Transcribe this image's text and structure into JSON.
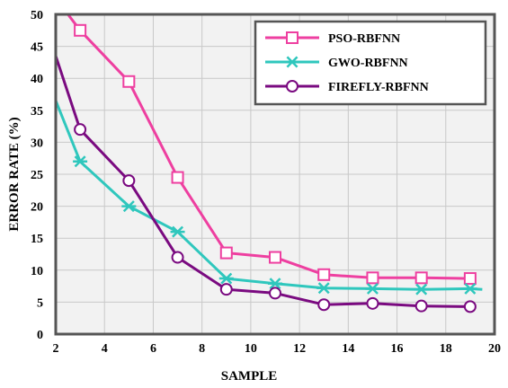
{
  "chart_data": {
    "type": "line",
    "xlabel": "SAMPLE",
    "ylabel": "ERROR RATE (%)",
    "xlim": [
      2,
      20
    ],
    "ylim": [
      0,
      50
    ],
    "xticks": [
      "2",
      "4",
      "6",
      "8",
      "10",
      "12",
      "14",
      "16",
      "18",
      "20"
    ],
    "yticks": [
      "0",
      "5",
      "10",
      "15",
      "20",
      "25",
      "30",
      "35",
      "40",
      "45",
      "50"
    ],
    "grid": true,
    "legend_position": "top-right",
    "series": [
      {
        "name": "PSO-RBFNN",
        "color": "#ee3fa0",
        "marker": "square",
        "line_x": [
          2.5,
          3,
          5,
          7,
          9,
          11,
          13,
          15,
          17,
          19
        ],
        "line_y": [
          50,
          47.5,
          39.5,
          24.5,
          12.7,
          12,
          9.3,
          8.8,
          8.8,
          8.7
        ],
        "points_x": [
          3,
          5,
          7,
          9,
          11,
          13,
          15,
          17,
          19
        ],
        "points_y": [
          47.5,
          39.5,
          24.5,
          12.7,
          12,
          9.3,
          8.8,
          8.8,
          8.7
        ]
      },
      {
        "name": "GWO-RBFNN",
        "color": "#2fc7bd",
        "marker": "star",
        "line_x": [
          2,
          3,
          5,
          7,
          9,
          11,
          13,
          15,
          17,
          19,
          19.5
        ],
        "line_y": [
          36.5,
          27,
          20,
          16,
          8.7,
          7.9,
          7.2,
          7.1,
          7.0,
          7.1,
          7.0
        ],
        "points_x": [
          3,
          5,
          7,
          9,
          11,
          13,
          15,
          17,
          19
        ],
        "points_y": [
          27,
          20,
          16,
          8.7,
          7.9,
          7.2,
          7.1,
          7.0,
          7.1
        ]
      },
      {
        "name": "FIREFLY-RBFNN",
        "color": "#7a0a80",
        "marker": "circle",
        "line_x": [
          2,
          3,
          5,
          7,
          9,
          11,
          13,
          15,
          17,
          19
        ],
        "line_y": [
          43.5,
          32,
          24,
          12,
          7,
          6.4,
          4.6,
          4.8,
          4.4,
          4.3
        ],
        "points_x": [
          3,
          5,
          7,
          9,
          11,
          13,
          15,
          17,
          19
        ],
        "points_y": [
          32,
          24,
          12,
          7,
          6.4,
          4.6,
          4.8,
          4.4,
          4.3
        ]
      }
    ]
  }
}
